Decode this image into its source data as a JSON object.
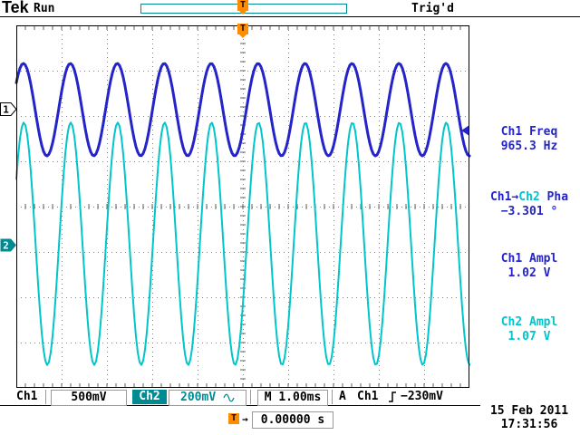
{
  "colors": {
    "ch1": "#2424c8",
    "ch2": "#00c6cb",
    "teal": "#008b92",
    "orange": "#ff8c00",
    "grid": "#808080",
    "text": "#000000",
    "bg": "#ffffff"
  },
  "header": {
    "logo": "Tek",
    "acq_state": "Run",
    "trigger_state": "Trig'd",
    "trigger_marker": "T"
  },
  "graticule": {
    "trigger_marker": "T"
  },
  "channel_markers": {
    "ch1": "1",
    "ch2": "2"
  },
  "measurements": {
    "freq": {
      "label": "Ch1 Freq",
      "value": "965.3 Hz"
    },
    "phase": {
      "label_src": "Ch1→",
      "label_src2": "Ch2",
      "label_suffix": " Pha",
      "value": "−3.301 °"
    },
    "ch1_ampl": {
      "label": "Ch1 Ampl",
      "value": "1.02 V"
    },
    "ch2_ampl": {
      "label": "Ch2 Ampl",
      "value": "1.07 V"
    }
  },
  "statusbar": {
    "ch1_label": "Ch1",
    "ch1_scale": "500mV",
    "ch2_label": "Ch2",
    "ch2_scale": "200mV",
    "ch2_coupling": "AC",
    "timebase": "M 1.00ms",
    "trig_prefix": "A",
    "trig_source": "Ch1",
    "trig_slope": "rising",
    "trig_level": "−230mV"
  },
  "trigger_readout": {
    "marker": "T",
    "arrow": "→",
    "value": "0.00000 s"
  },
  "datetime": {
    "date": "15 Feb 2011",
    "time": "17:31:56"
  },
  "chart_data": {
    "type": "line",
    "title": "Oscilloscope dual-channel sine traces",
    "divisions_x": 10,
    "divisions_y": 8,
    "seconds_per_div": 0.001,
    "series": [
      {
        "name": "Ch1",
        "color": "#2424c8",
        "volts_per_div": 0.5,
        "scale_label": "500mV",
        "freq_hz": 965.3,
        "amplitude_vpp_v": 1.02,
        "center_div_from_top": 1.86,
        "phase_deg_rel_ch1": 0,
        "stroke_width": 3
      },
      {
        "name": "Ch2",
        "color": "#00c6cb",
        "volts_per_div": 0.2,
        "scale_label": "200mV",
        "freq_hz": 965.3,
        "amplitude_vpp_v": 1.07,
        "center_div_from_top": 4.82,
        "phase_deg_rel_ch1": -3.301,
        "stroke_width": 2
      }
    ],
    "trigger": {
      "source": "Ch1",
      "level_v": -0.23,
      "slope": "rising",
      "position_s": 0.0
    },
    "measurements": {
      "ch1_freq_hz": 965.3,
      "ch1_to_ch2_phase_deg": -3.301,
      "ch1_ampl_v": 1.02,
      "ch2_ampl_v": 1.07
    }
  }
}
